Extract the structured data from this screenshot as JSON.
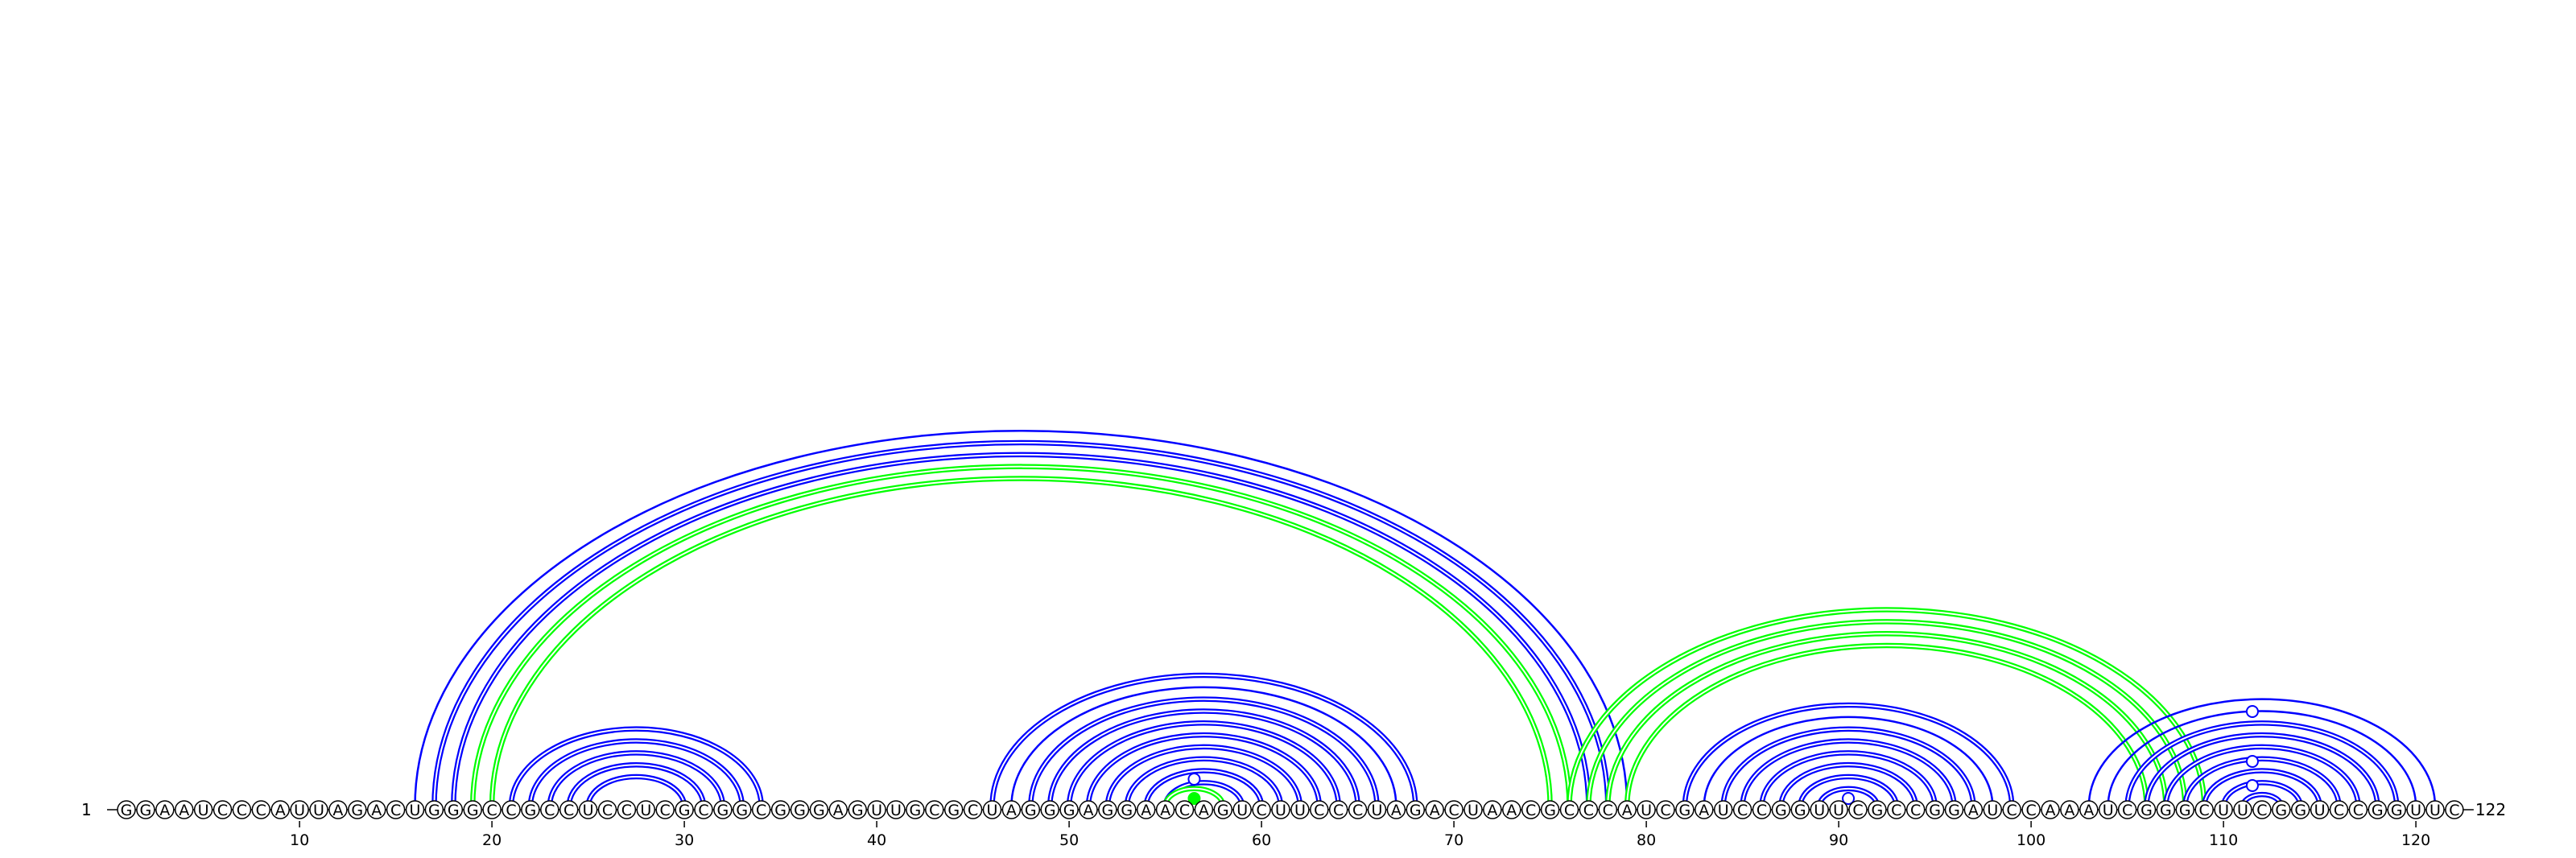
{
  "sequence": "GGAAUCCCAUUAGACUGGGCCGCCUCCUCGCGGCGGGAGUUGCGCUAGGGAGGAACAGUCUUCCCUAGACUAACGCCCAUCGAUCCGGUUCGCCGGAUCCAAAUCGGGCUUCGGUCCGGUUC",
  "start_label": "1",
  "end_label": "122",
  "ticks": [
    {
      "pos": 10,
      "label": "10"
    },
    {
      "pos": 20,
      "label": "20"
    },
    {
      "pos": 30,
      "label": "30"
    },
    {
      "pos": 40,
      "label": "40"
    },
    {
      "pos": 50,
      "label": "50"
    },
    {
      "pos": 60,
      "label": "60"
    },
    {
      "pos": 70,
      "label": "70"
    },
    {
      "pos": 80,
      "label": "80"
    },
    {
      "pos": 90,
      "label": "90"
    },
    {
      "pos": 100,
      "label": "100"
    },
    {
      "pos": 110,
      "label": "110"
    },
    {
      "pos": 120,
      "label": "120"
    }
  ],
  "colors": {
    "blue": "#0000ff",
    "green": "#00ff00"
  },
  "arc_pairs": [
    {
      "i": 16,
      "j": 79,
      "color": "blue",
      "double": false
    },
    {
      "i": 17,
      "j": 78,
      "color": "blue",
      "double": true
    },
    {
      "i": 18,
      "j": 77,
      "color": "blue",
      "double": true
    },
    {
      "i": 19,
      "j": 76,
      "color": "green",
      "double": true
    },
    {
      "i": 20,
      "j": 75,
      "color": "green",
      "double": true
    },
    {
      "i": 21,
      "j": 34,
      "color": "blue",
      "double": true
    },
    {
      "i": 22,
      "j": 33,
      "color": "blue",
      "double": true
    },
    {
      "i": 23,
      "j": 32,
      "color": "blue",
      "double": true
    },
    {
      "i": 24,
      "j": 31,
      "color": "blue",
      "double": true
    },
    {
      "i": 25,
      "j": 30,
      "color": "blue",
      "double": true
    },
    {
      "i": 46,
      "j": 68,
      "color": "blue",
      "double": true
    },
    {
      "i": 47,
      "j": 67,
      "color": "blue",
      "double": false
    },
    {
      "i": 48,
      "j": 66,
      "color": "blue",
      "double": true
    },
    {
      "i": 49,
      "j": 65,
      "color": "blue",
      "double": true
    },
    {
      "i": 50,
      "j": 64,
      "color": "blue",
      "double": true
    },
    {
      "i": 51,
      "j": 63,
      "color": "blue",
      "double": true
    },
    {
      "i": 52,
      "j": 62,
      "color": "blue",
      "double": true
    },
    {
      "i": 53,
      "j": 61,
      "color": "blue",
      "double": true
    },
    {
      "i": 54,
      "j": 60,
      "color": "blue",
      "double": true
    },
    {
      "i": 55,
      "j": 59,
      "color": "blue",
      "double": true
    },
    {
      "i": 55,
      "j": 58,
      "color": "green",
      "double": true
    },
    {
      "i": 76,
      "j": 109,
      "color": "green",
      "double": true
    },
    {
      "i": 77,
      "j": 108,
      "color": "green",
      "double": true
    },
    {
      "i": 78,
      "j": 107,
      "color": "green",
      "double": true
    },
    {
      "i": 79,
      "j": 106,
      "color": "green",
      "double": true
    },
    {
      "i": 82,
      "j": 99,
      "color": "blue",
      "double": true
    },
    {
      "i": 83,
      "j": 98,
      "color": "blue",
      "double": false
    },
    {
      "i": 84,
      "j": 97,
      "color": "blue",
      "double": true
    },
    {
      "i": 85,
      "j": 96,
      "color": "blue",
      "double": true
    },
    {
      "i": 86,
      "j": 95,
      "color": "blue",
      "double": true
    },
    {
      "i": 87,
      "j": 94,
      "color": "blue",
      "double": true
    },
    {
      "i": 88,
      "j": 93,
      "color": "blue",
      "double": true
    },
    {
      "i": 89,
      "j": 92,
      "color": "blue",
      "double": true
    },
    {
      "i": 103,
      "j": 121,
      "color": "blue",
      "double": false
    },
    {
      "i": 104,
      "j": 120,
      "color": "blue",
      "double": false
    },
    {
      "i": 105,
      "j": 119,
      "color": "blue",
      "double": true
    },
    {
      "i": 106,
      "j": 118,
      "color": "blue",
      "double": true
    },
    {
      "i": 107,
      "j": 117,
      "color": "blue",
      "double": true
    },
    {
      "i": 108,
      "j": 116,
      "color": "blue",
      "double": true
    },
    {
      "i": 109,
      "j": 115,
      "color": "blue",
      "double": true
    },
    {
      "i": 110,
      "j": 114,
      "color": "blue",
      "double": true
    },
    {
      "i": 111,
      "j": 113,
      "color": "blue",
      "double": true
    }
  ],
  "markers": [
    {
      "pos": 56.5,
      "level": 38,
      "filled": false,
      "color": "blue"
    },
    {
      "pos": 56.5,
      "level": 14,
      "filled": true,
      "color": "green"
    },
    {
      "pos": 90.5,
      "level": 14,
      "filled": false,
      "color": "blue"
    },
    {
      "pos": 111.5,
      "level": 122,
      "filled": false,
      "color": "blue"
    },
    {
      "pos": 111.5,
      "level": 60,
      "filled": false,
      "color": "blue"
    },
    {
      "pos": 111.5,
      "level": 30,
      "filled": false,
      "color": "blue"
    }
  ]
}
